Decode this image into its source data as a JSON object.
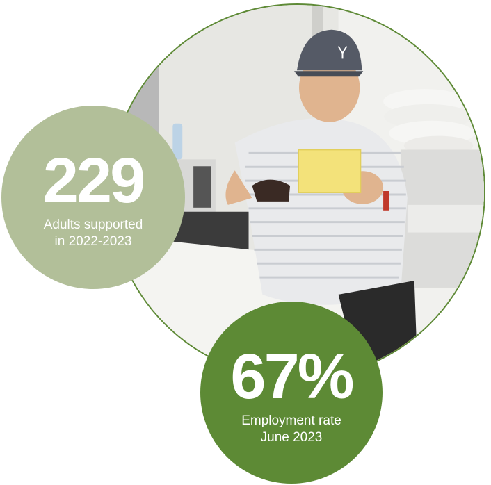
{
  "stats": [
    {
      "value": "229",
      "caption": "Adults supported\nin 2022-2023",
      "color": "#b2bf99"
    },
    {
      "value": "67%",
      "caption": "Employment rate\nJune 2023",
      "color": "#5d8a35"
    }
  ],
  "photo": {
    "subject": "man-holding-sponge-icon",
    "cap_logo": "cap-logo-icon"
  },
  "colors": {
    "ring": "#5e8a36",
    "counter_edge": "#f2dc22"
  }
}
